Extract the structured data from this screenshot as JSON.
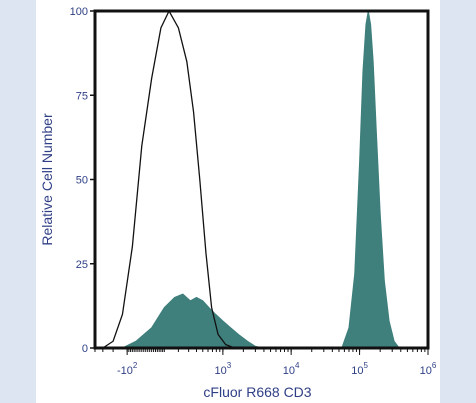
{
  "chart_data": {
    "type": "area",
    "xlabel": "cFluor R668 CD3",
    "ylabel": "Relative Cell Number",
    "x_scale": "biexponential",
    "xlim": [
      -400,
      1000000
    ],
    "ylim": [
      0,
      100
    ],
    "x_ticks": [
      {
        "value": -100,
        "base": "-10",
        "exp": "2"
      },
      {
        "value": 1000,
        "base": "10",
        "exp": "3"
      },
      {
        "value": 10000,
        "base": "10",
        "exp": "4"
      },
      {
        "value": 100000,
        "base": "10",
        "exp": "5"
      },
      {
        "value": 1000000,
        "base": "10",
        "exp": "6"
      }
    ],
    "y_ticks": [
      "0",
      "25",
      "50",
      "75",
      "100"
    ],
    "series": [
      {
        "style": "outline",
        "color": "#111111",
        "points": [
          [
            -300,
            0
          ],
          [
            -200,
            2
          ],
          [
            -130,
            10
          ],
          [
            -70,
            30
          ],
          [
            -20,
            60
          ],
          [
            30,
            80
          ],
          [
            80,
            95
          ],
          [
            130,
            100
          ],
          [
            200,
            95
          ],
          [
            280,
            85
          ],
          [
            360,
            70
          ],
          [
            450,
            50
          ],
          [
            560,
            28
          ],
          [
            680,
            12
          ],
          [
            850,
            4
          ],
          [
            1100,
            1
          ],
          [
            1500,
            0
          ]
        ]
      },
      {
        "style": "filled",
        "color": "#3f7f7c",
        "points": [
          [
            -130,
            0
          ],
          [
            -50,
            2
          ],
          [
            30,
            6
          ],
          [
            100,
            12
          ],
          [
            170,
            15
          ],
          [
            240,
            16
          ],
          [
            320,
            14
          ],
          [
            400,
            15
          ],
          [
            500,
            14
          ],
          [
            620,
            12
          ],
          [
            780,
            10
          ],
          [
            1000,
            8
          ],
          [
            1300,
            6
          ],
          [
            1700,
            4
          ],
          [
            2300,
            2
          ],
          [
            3000,
            0.5
          ],
          [
            4000,
            0
          ],
          [
            55000,
            0
          ],
          [
            70000,
            6
          ],
          [
            85000,
            22
          ],
          [
            100000,
            55
          ],
          [
            112000,
            82
          ],
          [
            124000,
            96
          ],
          [
            134000,
            100
          ],
          [
            145000,
            96
          ],
          [
            158000,
            85
          ],
          [
            175000,
            65
          ],
          [
            200000,
            40
          ],
          [
            230000,
            20
          ],
          [
            270000,
            8
          ],
          [
            320000,
            2
          ],
          [
            380000,
            0
          ]
        ]
      }
    ]
  }
}
